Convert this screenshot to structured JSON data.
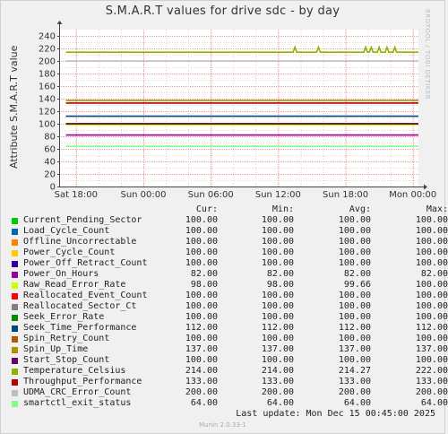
{
  "title": "S.M.A.R.T values for drive sdc - by day",
  "watermark": "RRDTOOL / TOBI OETIKER",
  "footer": "Last update:  Mon Dec 15 00:45:00 2025",
  "munin": "Munin 2.0.33-1",
  "legend_headers": {
    "cur": "Cur:",
    "min": "Min:",
    "avg": "Avg:",
    "max": "Max:"
  },
  "chart_data": {
    "type": "line",
    "ylabel": "Attribute S.M.A.R.T value",
    "ylim": [
      0,
      250
    ],
    "yticks": [
      0,
      20,
      40,
      60,
      80,
      100,
      120,
      140,
      160,
      180,
      200,
      220,
      240
    ],
    "xlim_hours": [
      -31.5,
      0.5
    ],
    "xticks": [
      {
        "label": "Sat 18:00",
        "h": -30
      },
      {
        "label": "Sun 00:00",
        "h": -24
      },
      {
        "label": "Sun 06:00",
        "h": -18
      },
      {
        "label": "Sun 12:00",
        "h": -12
      },
      {
        "label": "Sun 18:00",
        "h": -6
      },
      {
        "label": "Mon 00:00",
        "h": 0
      }
    ],
    "grid": true,
    "series": [
      {
        "name": "Current_Pending_Sector",
        "color": "#00cc00",
        "cur": "100.00",
        "min": "100.00",
        "avg": "100.00",
        "max": "100.00",
        "value": 100
      },
      {
        "name": "Load_Cycle_Count",
        "color": "#0066b3",
        "cur": "100.00",
        "min": "100.00",
        "avg": "100.00",
        "max": "100.00",
        "value": 100
      },
      {
        "name": "Offline_Uncorrectable",
        "color": "#ff8000",
        "cur": "100.00",
        "min": "100.00",
        "avg": "100.00",
        "max": "100.00",
        "value": 100
      },
      {
        "name": "Power_Cycle_Count",
        "color": "#ffcc00",
        "cur": "100.00",
        "min": "100.00",
        "avg": "100.00",
        "max": "100.00",
        "value": 100
      },
      {
        "name": "Power_Off_Retract_Count",
        "color": "#330099",
        "cur": "100.00",
        "min": "100.00",
        "avg": "100.00",
        "max": "100.00",
        "value": 100
      },
      {
        "name": "Power_On_Hours",
        "color": "#990099",
        "cur": "82.00",
        "min": "82.00",
        "avg": "82.00",
        "max": "82.00",
        "value": 82
      },
      {
        "name": "Raw_Read_Error_Rate",
        "color": "#ccff00",
        "cur": "98.00",
        "min": "98.00",
        "avg": "99.66",
        "max": "100.00",
        "value": 98
      },
      {
        "name": "Reallocated_Event_Count",
        "color": "#ff0000",
        "cur": "100.00",
        "min": "100.00",
        "avg": "100.00",
        "max": "100.00",
        "value": 100
      },
      {
        "name": "Reallocated_Sector_Ct",
        "color": "#808080",
        "cur": "100.00",
        "min": "100.00",
        "avg": "100.00",
        "max": "100.00",
        "value": 100
      },
      {
        "name": "Seek_Error_Rate",
        "color": "#008f00",
        "cur": "100.00",
        "min": "100.00",
        "avg": "100.00",
        "max": "100.00",
        "value": 100
      },
      {
        "name": "Seek_Time_Performance",
        "color": "#00487d",
        "cur": "112.00",
        "min": "112.00",
        "avg": "112.00",
        "max": "112.00",
        "value": 112
      },
      {
        "name": "Spin_Retry_Count",
        "color": "#b35a00",
        "cur": "100.00",
        "min": "100.00",
        "avg": "100.00",
        "max": "100.00",
        "value": 100
      },
      {
        "name": "Spin_Up_Time",
        "color": "#b38f00",
        "cur": "137.00",
        "min": "137.00",
        "avg": "137.00",
        "max": "137.00",
        "value": 137
      },
      {
        "name": "Start_Stop_Count",
        "color": "#6b006b",
        "cur": "100.00",
        "min": "100.00",
        "avg": "100.00",
        "max": "100.00",
        "value": 100
      },
      {
        "name": "Temperature_Celsius",
        "color": "#8fb300",
        "cur": "214.00",
        "min": "214.00",
        "avg": "214.27",
        "max": "222.00",
        "value": 214,
        "spikes_hours": [
          -10.5,
          -8.4,
          -4.2,
          -3.7,
          -3.0,
          -2.3,
          -1.6
        ]
      },
      {
        "name": "Throughput_Performance",
        "color": "#b30000",
        "cur": "133.00",
        "min": "133.00",
        "avg": "133.00",
        "max": "133.00",
        "value": 133
      },
      {
        "name": "UDMA_CRC_Error_Count",
        "color": "#bebebe",
        "cur": "200.00",
        "min": "200.00",
        "avg": "200.00",
        "max": "200.00",
        "value": 200
      },
      {
        "name": "smartctl_exit_status",
        "color": "#80ff80",
        "cur": "64.00",
        "min": "64.00",
        "avg": "64.00",
        "max": "64.00",
        "value": 64
      }
    ]
  }
}
